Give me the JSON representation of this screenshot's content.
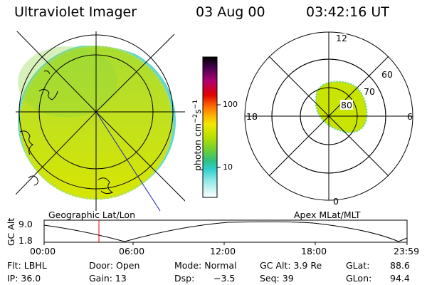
{
  "header": {
    "instrument": "Ultraviolet Imager",
    "date": "03 Aug 00",
    "time": "03:42:16 UT"
  },
  "colorbar": {
    "unit_label": "photon cm",
    "unit_exp1": "−2",
    "unit_mid": "s",
    "unit_exp2": "−1",
    "tick_100": "100",
    "tick_10": "10",
    "colors": [
      "#000000",
      "#5a0060",
      "#c00070",
      "#e80000",
      "#ff7000",
      "#ffc000",
      "#e8f000",
      "#a8e000",
      "#50d040",
      "#20c8a0",
      "#40e0e0",
      "#b0f0f0",
      "#ffffff"
    ]
  },
  "geo_panel": {
    "caption": "Geographic Lat/Lon",
    "fill_color": "#c8e400"
  },
  "polar_panel": {
    "caption": "Apex MLat/MLT",
    "label_12": "12",
    "label_18": "18",
    "label_6": "6",
    "label_0": "0",
    "label_60": "60",
    "label_70": "70",
    "label_80": "80"
  },
  "altitude_plot": {
    "ylabel": "GC Alt",
    "ymax": "9.0",
    "ymin": "1.8",
    "xticks": [
      "00:00",
      "06:00",
      "12:00",
      "18:00",
      "23:59"
    ],
    "marker_color": "#e00000"
  },
  "info": {
    "flt": "Flt: LBHL",
    "ip": "IP: 36.0",
    "door": "Door: Open",
    "gain": "Gain: 13",
    "mode": "Mode: Normal",
    "dsp_label": "Dsp:",
    "dsp_value": "−3.5",
    "gcalt": "GC Alt: 3.9 Re",
    "seq": "Seq: 39",
    "glat_label": "GLat:",
    "glat_value": "88.6",
    "glon_label": "GLon:",
    "glon_value": "94.4"
  }
}
